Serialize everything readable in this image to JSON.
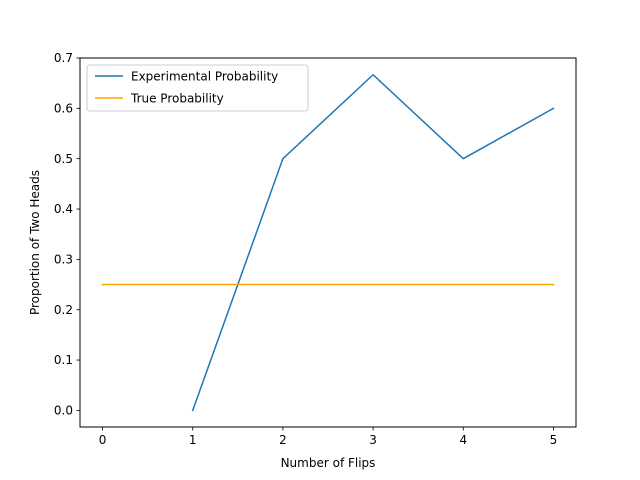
{
  "chart_data": {
    "type": "line",
    "title": "",
    "xlabel": "Number of Flips",
    "ylabel": "Proportion of Two Heads",
    "xlim": [
      -0.25,
      5.25
    ],
    "ylim": [
      -0.033,
      0.7
    ],
    "x_ticks": [
      0,
      1,
      2,
      3,
      4,
      5
    ],
    "y_ticks": [
      0.0,
      0.1,
      0.2,
      0.3,
      0.4,
      0.5,
      0.6,
      0.7
    ],
    "x_tick_labels": [
      "0",
      "1",
      "2",
      "3",
      "4",
      "5"
    ],
    "y_tick_labels": [
      "0.0",
      "0.1",
      "0.2",
      "0.3",
      "0.4",
      "0.5",
      "0.6",
      "0.7"
    ],
    "grid": false,
    "legend_position": "top-left",
    "series": [
      {
        "name": "Experimental Probability",
        "color": "#1f77b4",
        "x": [
          1,
          2,
          3,
          4,
          5
        ],
        "y": [
          0.0,
          0.5,
          0.6667,
          0.5,
          0.6
        ]
      },
      {
        "name": "True Probability",
        "color": "#ffa500",
        "x": [
          0,
          1,
          2,
          3,
          4,
          5
        ],
        "y": [
          0.25,
          0.25,
          0.25,
          0.25,
          0.25,
          0.25
        ]
      }
    ]
  }
}
